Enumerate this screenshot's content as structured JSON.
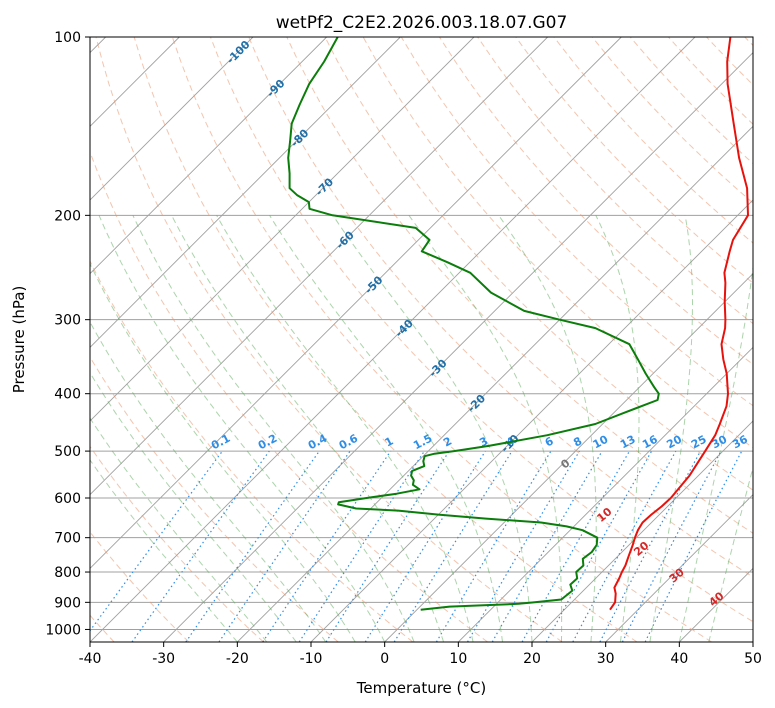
{
  "chart_data": {
    "type": "line",
    "title": "wetPf2_C2E2.2026.003.18.07.G07",
    "xlabel": "Temperature (°C)",
    "ylabel": "Pressure (hPa)",
    "xlim": [
      -40,
      50
    ],
    "ylim_hpa": [
      1050,
      100
    ],
    "y_scale": "log",
    "x_ticks": [
      -40,
      -30,
      -20,
      -10,
      0,
      10,
      20,
      30,
      40,
      50
    ],
    "y_ticks": [
      100,
      200,
      300,
      400,
      500,
      600,
      700,
      800,
      900,
      1000
    ],
    "grid": true,
    "skew_degrees": 45,
    "isotherm_labels": [
      -100,
      -90,
      -80,
      -70,
      -60,
      -50,
      -40,
      -30,
      -20,
      -10
    ],
    "mixing_ratio_labels": [
      "0.1",
      "0.2",
      "0.4",
      "0.6",
      "1",
      "1.5",
      "2",
      "3",
      "4",
      "6",
      "8",
      "10",
      "13",
      "16",
      "20",
      "25",
      "30",
      "36"
    ],
    "moist_adiabat_labels": [
      "0",
      "10",
      "20",
      "30",
      "40"
    ],
    "colors": {
      "temperature": "#e8120c",
      "dewpoint": "#0a7d0a",
      "isotherm_label": "#1f6fa8",
      "mixing_ratio": "#2e8ee6",
      "moist_label": "#d62728",
      "dry_adiabat": "#e8956e",
      "moist_adiabat": "#5aaa5a",
      "grid": "#a0a0a0"
    },
    "series": [
      {
        "key": "temperature",
        "p": [
          926,
          900,
          870,
          850,
          820,
          800,
          780,
          750,
          720,
          700,
          680,
          660,
          640,
          620,
          600,
          550,
          500,
          470,
          450,
          420,
          400,
          370,
          350,
          330,
          310,
          300,
          280,
          260,
          250,
          230,
          220,
          200,
          180,
          160,
          140,
          120,
          110,
          100
        ],
        "t": [
          26.2,
          25.9,
          24.8,
          23.8,
          23.2,
          22.7,
          22.3,
          21.4,
          20.5,
          19.8,
          19.2,
          18.8,
          18.9,
          19.2,
          19.3,
          18.8,
          17.6,
          16.8,
          15.9,
          14.4,
          12.9,
          10.0,
          7.6,
          5.3,
          3.6,
          2.5,
          0.0,
          -2.5,
          -4.0,
          -6.2,
          -7.3,
          -8.6,
          -12.4,
          -17.6,
          -23.0,
          -29.2,
          -32.3,
          -35.2
        ]
      },
      {
        "key": "dewpoint",
        "p": [
          926,
          915,
          905,
          900,
          890,
          860,
          840,
          820,
          800,
          780,
          760,
          740,
          720,
          700,
          680,
          670,
          660,
          650,
          640,
          630,
          625,
          615,
          610,
          600,
          590,
          580,
          570,
          560,
          550,
          540,
          530,
          520,
          510,
          505,
          500,
          490,
          470,
          450,
          430,
          410,
          400,
          390,
          370,
          350,
          330,
          310,
          300,
          290,
          270,
          250,
          240,
          230,
          220,
          210,
          200,
          195,
          190,
          185,
          180,
          170,
          160,
          150,
          140,
          130,
          120,
          110,
          100
        ],
        "td": [
          0.5,
          4.0,
          13.0,
          15.0,
          18.2,
          18.5,
          17.4,
          17.5,
          16.5,
          16.6,
          15.6,
          15.9,
          15.6,
          14.7,
          11.7,
          9.0,
          5.0,
          -3.0,
          -10.0,
          -16.0,
          -22.0,
          -25.0,
          -25.2,
          -22.0,
          -18.5,
          -16.0,
          -17.5,
          -18.0,
          -19.0,
          -19.5,
          -18.5,
          -19.3,
          -19.8,
          -18.8,
          -16.5,
          -12.5,
          -6.0,
          -1.0,
          1.5,
          4.2,
          3.5,
          2.0,
          -1.0,
          -4.0,
          -7.2,
          -14.0,
          -20.0,
          -26.0,
          -33.0,
          -38.5,
          -43.0,
          -48.0,
          -48.5,
          -52.0,
          -65.0,
          -69.0,
          -70.0,
          -72.5,
          -74.5,
          -76.5,
          -78.8,
          -80.8,
          -83.0,
          -84.5,
          -86.0,
          -87.0,
          -88.5
        ]
      }
    ]
  }
}
